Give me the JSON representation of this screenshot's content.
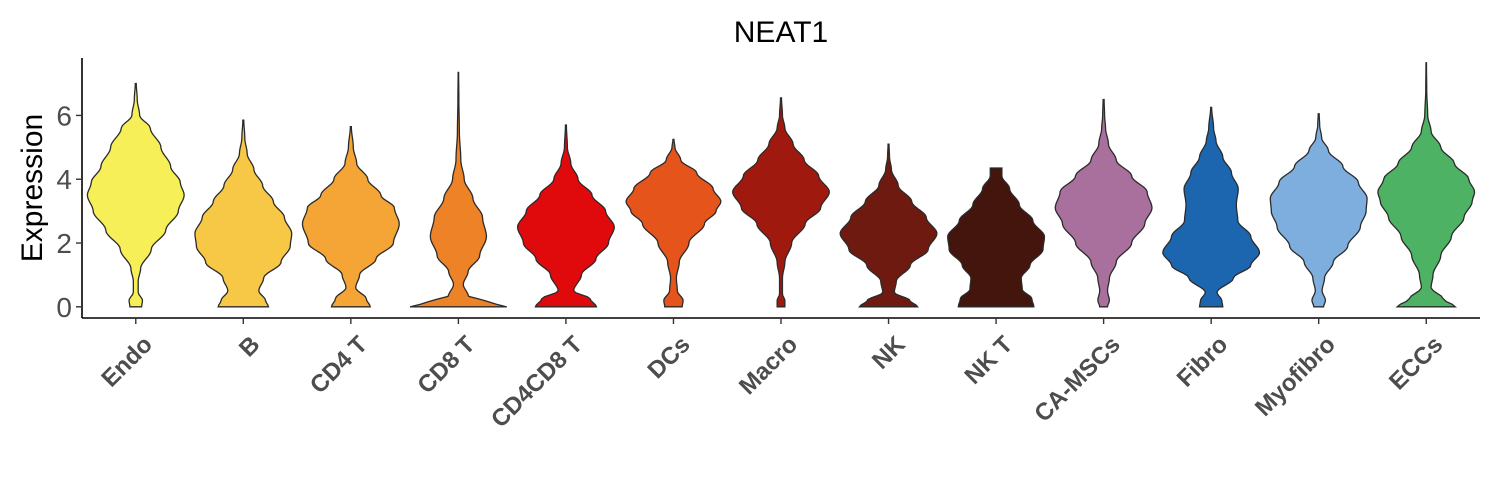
{
  "chart_data": {
    "type": "violin",
    "title": "NEAT1",
    "xlabel": "",
    "ylabel": "Expression",
    "ylim": [
      -0.35,
      7.8
    ],
    "yticks": [
      0,
      2,
      4,
      6
    ],
    "categories": [
      "Endo",
      "B",
      "CD4 T",
      "CD8 T",
      "CD4CD8 T",
      "DCs",
      "Macro",
      "NK",
      "NK T",
      "CA-MSCs",
      "Fibro",
      "Myofibro",
      "ECCs"
    ],
    "series": [
      {
        "category": "Endo",
        "color": "#F7EF57",
        "max": 7.0,
        "profile": [
          [
            0,
            0.12
          ],
          [
            0.2,
            0.14
          ],
          [
            0.45,
            0.05
          ],
          [
            0.8,
            0.05
          ],
          [
            1.2,
            0.1
          ],
          [
            1.8,
            0.32
          ],
          [
            2.4,
            0.62
          ],
          [
            3.0,
            0.88
          ],
          [
            3.5,
            1.0
          ],
          [
            3.9,
            0.92
          ],
          [
            4.4,
            0.72
          ],
          [
            5.0,
            0.52
          ],
          [
            5.6,
            0.3
          ],
          [
            6.0,
            0.08
          ],
          [
            6.5,
            0.03
          ],
          [
            7.0,
            0.01
          ]
        ]
      },
      {
        "category": "B",
        "color": "#F7C846",
        "max": 5.85,
        "profile": [
          [
            0,
            0.52
          ],
          [
            0.2,
            0.46
          ],
          [
            0.5,
            0.32
          ],
          [
            0.9,
            0.42
          ],
          [
            1.4,
            0.78
          ],
          [
            1.9,
            0.97
          ],
          [
            2.3,
            1.0
          ],
          [
            2.8,
            0.85
          ],
          [
            3.3,
            0.62
          ],
          [
            3.8,
            0.4
          ],
          [
            4.3,
            0.22
          ],
          [
            4.8,
            0.08
          ],
          [
            5.3,
            0.03
          ],
          [
            5.85,
            0.01
          ]
        ]
      },
      {
        "category": "CD4 T",
        "color": "#F4A535",
        "max": 5.65,
        "profile": [
          [
            0,
            0.4
          ],
          [
            0.25,
            0.32
          ],
          [
            0.6,
            0.1
          ],
          [
            1.0,
            0.18
          ],
          [
            1.5,
            0.52
          ],
          [
            2.0,
            0.88
          ],
          [
            2.6,
            1.0
          ],
          [
            3.1,
            0.9
          ],
          [
            3.5,
            0.62
          ],
          [
            4.0,
            0.35
          ],
          [
            4.5,
            0.12
          ],
          [
            5.0,
            0.05
          ],
          [
            5.65,
            0.01
          ]
        ]
      },
      {
        "category": "CD8 T",
        "color": "#EE8227",
        "max": 7.35,
        "profile": [
          [
            0,
            1.0
          ],
          [
            0.15,
            0.62
          ],
          [
            0.35,
            0.2
          ],
          [
            0.7,
            0.1
          ],
          [
            1.1,
            0.2
          ],
          [
            1.6,
            0.44
          ],
          [
            2.2,
            0.58
          ],
          [
            2.8,
            0.5
          ],
          [
            3.4,
            0.3
          ],
          [
            4.0,
            0.12
          ],
          [
            4.6,
            0.05
          ],
          [
            5.5,
            0.02
          ],
          [
            6.5,
            0.01
          ],
          [
            7.35,
            0.005
          ]
        ]
      },
      {
        "category": "CD4CD8 T",
        "color": "#E00A0C",
        "max": 5.7,
        "profile": [
          [
            0,
            0.63
          ],
          [
            0.25,
            0.5
          ],
          [
            0.5,
            0.16
          ],
          [
            1.0,
            0.32
          ],
          [
            1.5,
            0.62
          ],
          [
            2.0,
            0.88
          ],
          [
            2.5,
            1.0
          ],
          [
            3.0,
            0.82
          ],
          [
            3.5,
            0.54
          ],
          [
            4.0,
            0.25
          ],
          [
            4.5,
            0.1
          ],
          [
            5.0,
            0.03
          ],
          [
            5.7,
            0.01
          ]
        ]
      },
      {
        "category": "DCs",
        "color": "#E5541B",
        "max": 5.25,
        "profile": [
          [
            0,
            0.18
          ],
          [
            0.2,
            0.2
          ],
          [
            0.5,
            0.08
          ],
          [
            0.9,
            0.06
          ],
          [
            1.4,
            0.12
          ],
          [
            2.0,
            0.32
          ],
          [
            2.6,
            0.64
          ],
          [
            3.0,
            0.88
          ],
          [
            3.3,
            0.98
          ],
          [
            3.7,
            0.82
          ],
          [
            4.2,
            0.48
          ],
          [
            4.6,
            0.15
          ],
          [
            5.0,
            0.03
          ],
          [
            5.25,
            0.01
          ]
        ]
      },
      {
        "category": "Macro",
        "color": "#A0190F",
        "max": 6.55,
        "profile": [
          [
            0,
            0.08
          ],
          [
            0.2,
            0.08
          ],
          [
            0.4,
            0.03
          ],
          [
            0.9,
            0.03
          ],
          [
            1.4,
            0.08
          ],
          [
            2.0,
            0.22
          ],
          [
            2.6,
            0.5
          ],
          [
            3.1,
            0.82
          ],
          [
            3.6,
            1.0
          ],
          [
            4.1,
            0.78
          ],
          [
            4.6,
            0.48
          ],
          [
            5.1,
            0.25
          ],
          [
            5.6,
            0.08
          ],
          [
            6.0,
            0.03
          ],
          [
            6.55,
            0.01
          ]
        ]
      },
      {
        "category": "NK",
        "color": "#6E1A10",
        "max": 5.1,
        "profile": [
          [
            0,
            0.6
          ],
          [
            0.2,
            0.44
          ],
          [
            0.45,
            0.12
          ],
          [
            0.8,
            0.16
          ],
          [
            1.3,
            0.45
          ],
          [
            1.8,
            0.82
          ],
          [
            2.3,
            1.0
          ],
          [
            2.8,
            0.78
          ],
          [
            3.3,
            0.48
          ],
          [
            3.8,
            0.2
          ],
          [
            4.3,
            0.06
          ],
          [
            4.7,
            0.02
          ],
          [
            5.1,
            0.01
          ]
        ]
      },
      {
        "category": "NK T",
        "color": "#43150D",
        "max": 4.35,
        "profile": [
          [
            0,
            0.78
          ],
          [
            0.25,
            0.74
          ],
          [
            0.55,
            0.54
          ],
          [
            0.9,
            0.52
          ],
          [
            1.3,
            0.7
          ],
          [
            1.8,
            0.97
          ],
          [
            2.2,
            1.0
          ],
          [
            2.7,
            0.76
          ],
          [
            3.2,
            0.48
          ],
          [
            3.7,
            0.28
          ],
          [
            4.1,
            0.12
          ],
          [
            4.35,
            0.12
          ]
        ]
      },
      {
        "category": "CA-MSCs",
        "color": "#A96F9D",
        "max": 6.5,
        "profile": [
          [
            0,
            0.08
          ],
          [
            0.2,
            0.12
          ],
          [
            0.5,
            0.08
          ],
          [
            0.9,
            0.12
          ],
          [
            1.4,
            0.26
          ],
          [
            2.0,
            0.58
          ],
          [
            2.6,
            0.85
          ],
          [
            3.1,
            1.0
          ],
          [
            3.6,
            0.9
          ],
          [
            4.1,
            0.58
          ],
          [
            4.6,
            0.26
          ],
          [
            5.1,
            0.1
          ],
          [
            5.6,
            0.04
          ],
          [
            6.0,
            0.02
          ],
          [
            6.5,
            0.01
          ]
        ]
      },
      {
        "category": "Fibro",
        "color": "#1B66AF",
        "max": 6.25,
        "profile": [
          [
            0,
            0.24
          ],
          [
            0.2,
            0.22
          ],
          [
            0.45,
            0.12
          ],
          [
            0.9,
            0.46
          ],
          [
            1.3,
            0.82
          ],
          [
            1.7,
            1.0
          ],
          [
            2.2,
            0.82
          ],
          [
            2.7,
            0.55
          ],
          [
            3.2,
            0.52
          ],
          [
            3.7,
            0.56
          ],
          [
            4.2,
            0.42
          ],
          [
            4.7,
            0.24
          ],
          [
            5.2,
            0.1
          ],
          [
            5.6,
            0.05
          ],
          [
            6.25,
            0.01
          ]
        ]
      },
      {
        "category": "Myofibro",
        "color": "#7EAEDD",
        "max": 6.05,
        "profile": [
          [
            0,
            0.1
          ],
          [
            0.2,
            0.14
          ],
          [
            0.5,
            0.07
          ],
          [
            0.9,
            0.12
          ],
          [
            1.4,
            0.3
          ],
          [
            1.9,
            0.6
          ],
          [
            2.5,
            0.86
          ],
          [
            3.0,
            0.98
          ],
          [
            3.4,
            1.0
          ],
          [
            3.9,
            0.82
          ],
          [
            4.4,
            0.5
          ],
          [
            4.9,
            0.2
          ],
          [
            5.3,
            0.06
          ],
          [
            5.7,
            0.02
          ],
          [
            6.05,
            0.01
          ]
        ]
      },
      {
        "category": "ECCs",
        "color": "#4DB263",
        "max": 7.65,
        "profile": [
          [
            0,
            0.6
          ],
          [
            0.25,
            0.35
          ],
          [
            0.6,
            0.1
          ],
          [
            1.0,
            0.14
          ],
          [
            1.6,
            0.3
          ],
          [
            2.2,
            0.52
          ],
          [
            2.8,
            0.78
          ],
          [
            3.3,
            0.95
          ],
          [
            3.6,
            1.0
          ],
          [
            4.0,
            0.88
          ],
          [
            4.5,
            0.58
          ],
          [
            5.0,
            0.3
          ],
          [
            5.5,
            0.1
          ],
          [
            6.0,
            0.03
          ],
          [
            6.8,
            0.01
          ],
          [
            7.65,
            0.005
          ]
        ]
      }
    ]
  }
}
